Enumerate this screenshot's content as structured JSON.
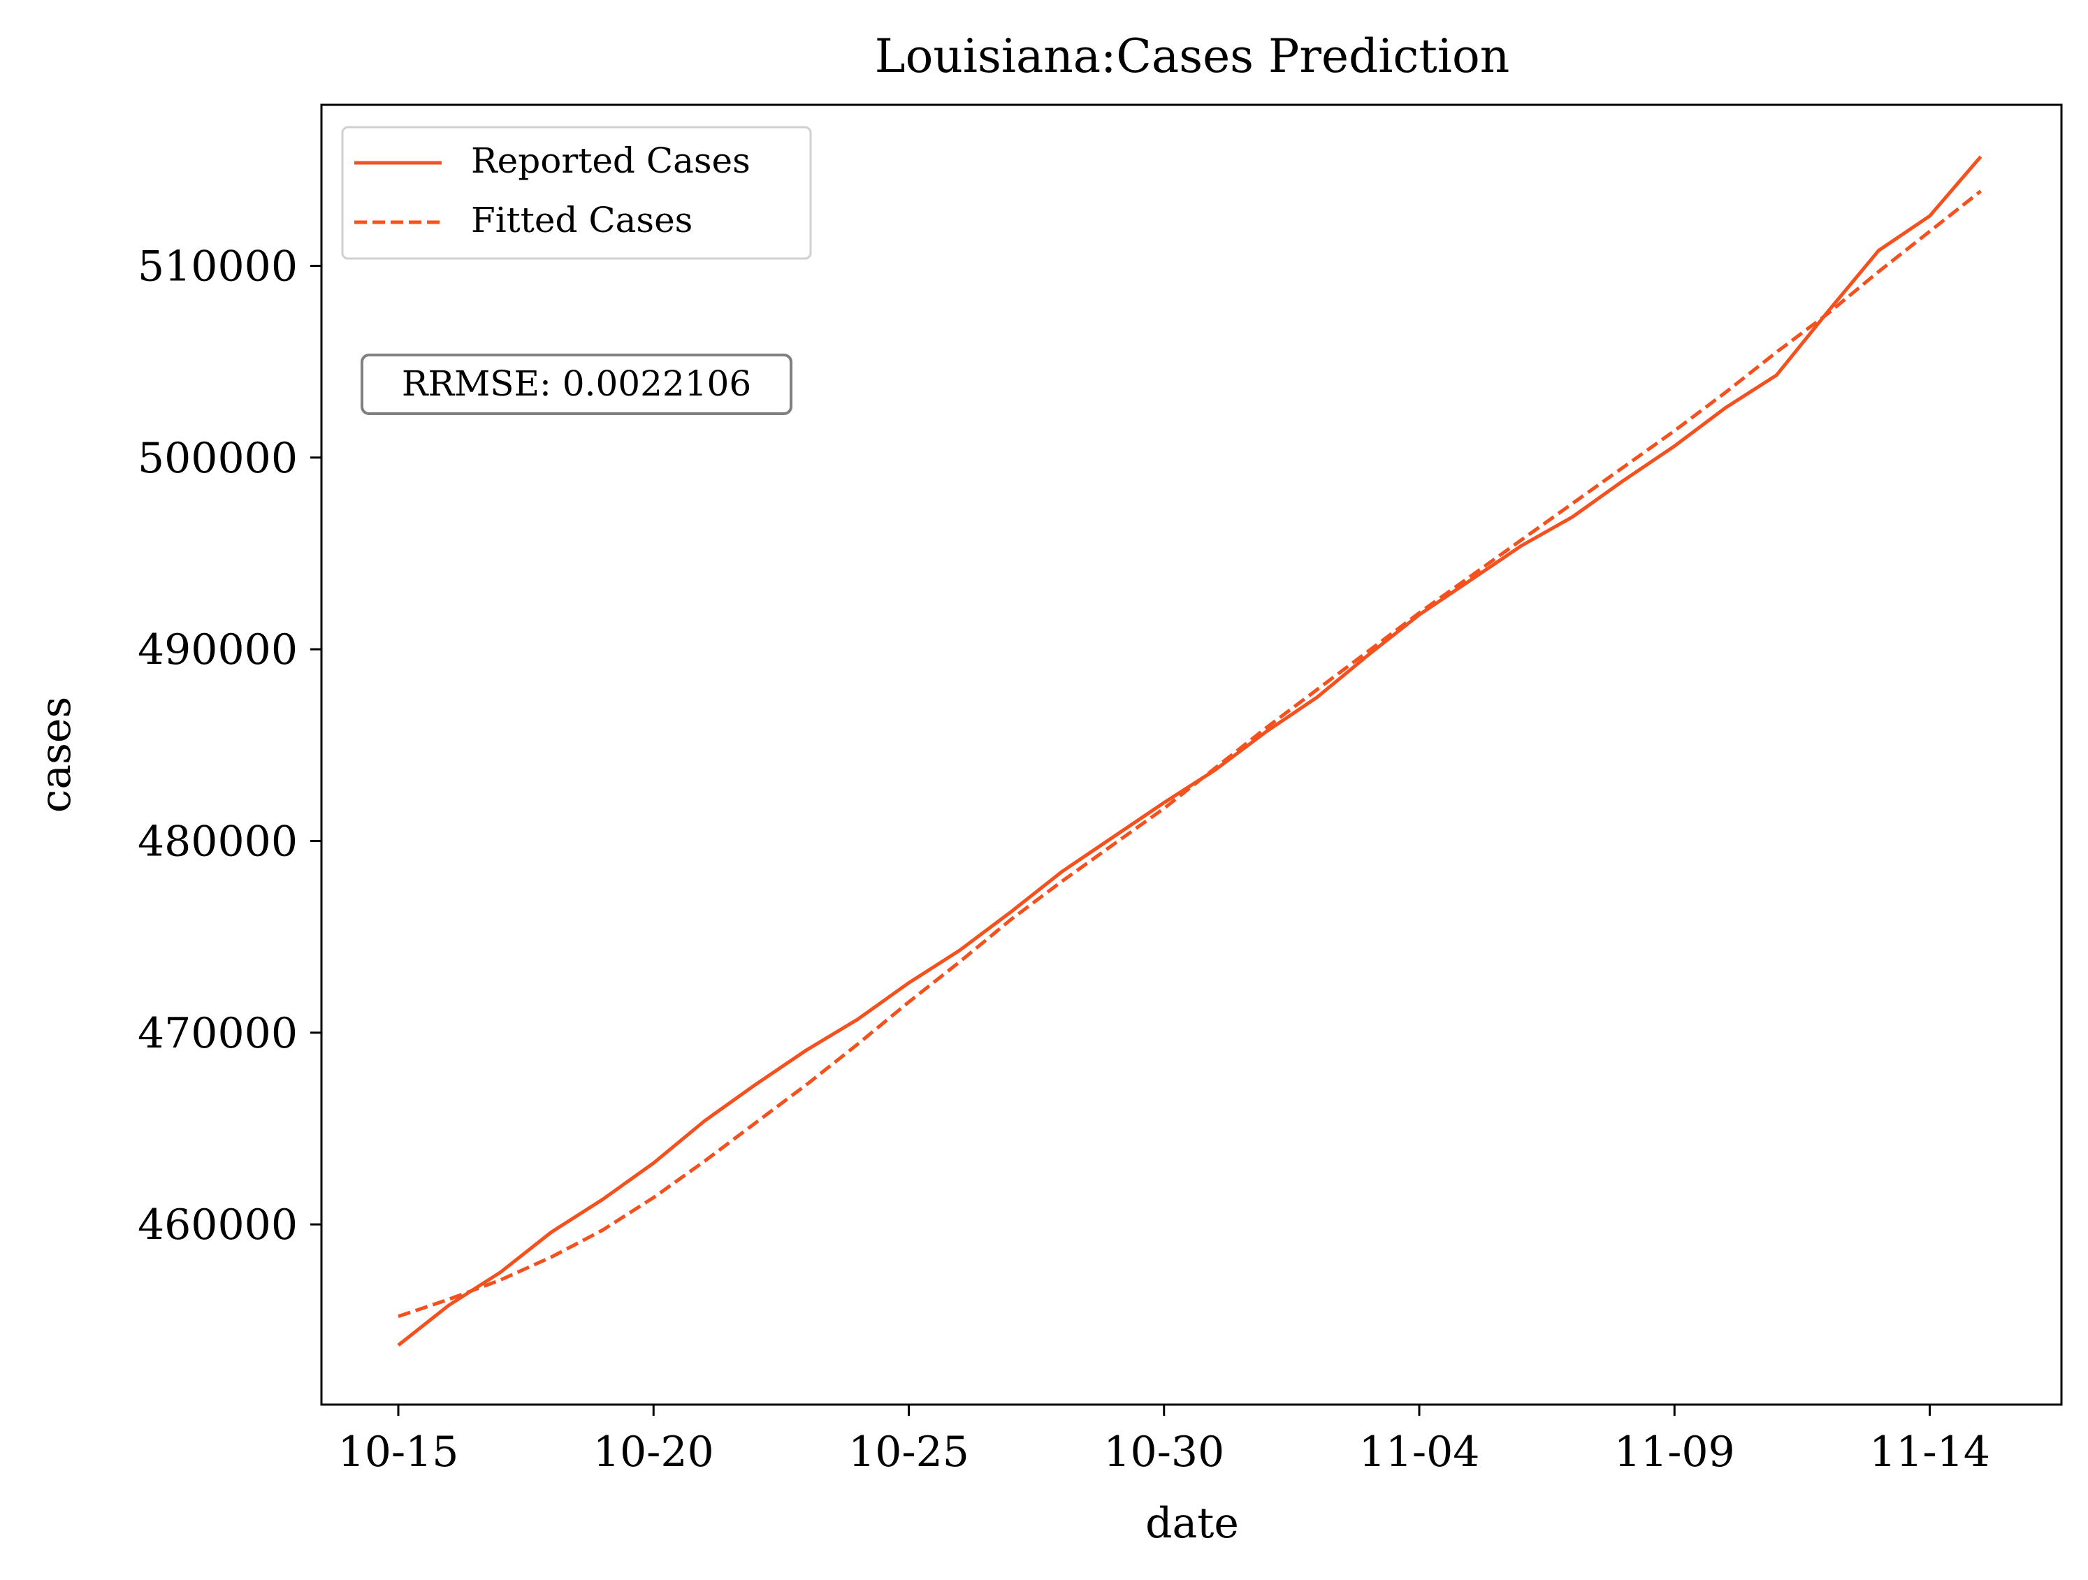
{
  "chart_data": {
    "type": "line",
    "title": "Louisiana:Cases Prediction",
    "xlabel": "date",
    "ylabel": "cases",
    "x_ticks": [
      "10-15",
      "10-20",
      "10-25",
      "10-30",
      "11-04",
      "11-09",
      "11-14"
    ],
    "y_ticks": [
      460000,
      470000,
      480000,
      490000,
      500000,
      510000
    ],
    "ylim": [
      450600,
      518400
    ],
    "x": [
      "10-15",
      "10-16",
      "10-17",
      "10-18",
      "10-19",
      "10-20",
      "10-21",
      "10-22",
      "10-23",
      "10-24",
      "10-25",
      "10-26",
      "10-27",
      "10-28",
      "10-29",
      "10-30",
      "10-31",
      "11-01",
      "11-02",
      "11-03",
      "11-04",
      "11-05",
      "11-06",
      "11-07",
      "11-08",
      "11-09",
      "11-10",
      "11-11",
      "11-12",
      "11-13",
      "11-14",
      "11-15"
    ],
    "series": [
      {
        "name": "Reported Cases",
        "style": "solid",
        "color": "#f4511e",
        "values": [
          453700,
          455800,
          457500,
          459600,
          461300,
          463200,
          465400,
          467300,
          469100,
          470700,
          472600,
          474300,
          476300,
          478400,
          480200,
          482000,
          483700,
          485700,
          487500,
          489700,
          491800,
          493600,
          495400,
          496900,
          498800,
          500600,
          502600,
          504300,
          507600,
          510800,
          512600,
          515700
        ]
      },
      {
        "name": "Fitted Cases",
        "style": "dashed",
        "color": "#f4511e",
        "values": [
          455200,
          456100,
          457100,
          458300,
          459700,
          461400,
          463300,
          465300,
          467300,
          469400,
          471600,
          473700,
          475900,
          477900,
          479800,
          481700,
          483800,
          485900,
          487900,
          489900,
          491900,
          493800,
          495700,
          497600,
          499500,
          501400,
          503400,
          505500,
          507500,
          509700,
          511800,
          513900
        ]
      }
    ],
    "legend": {
      "placement": "upper-left",
      "entries": [
        "Reported Cases",
        "Fitted Cases"
      ]
    },
    "annotation": "RRMSE: 0.0022106",
    "grid": false
  }
}
